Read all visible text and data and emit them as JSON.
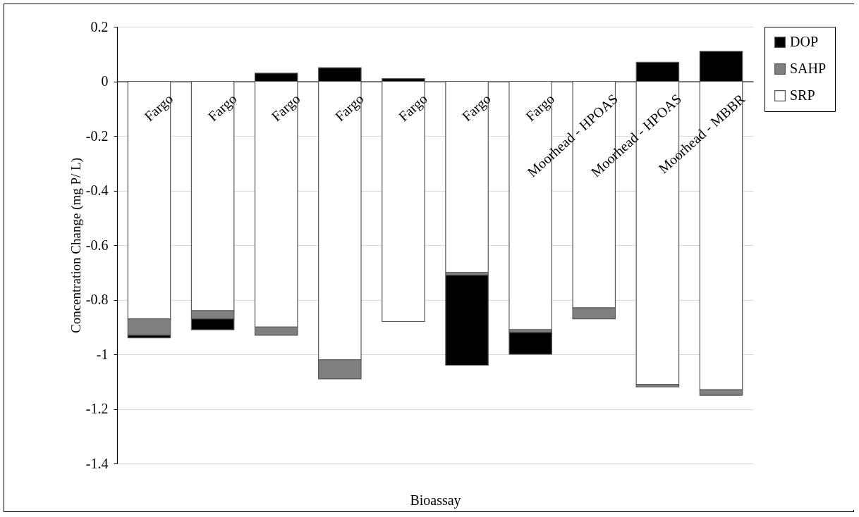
{
  "chart_data": {
    "type": "bar",
    "stacked": true,
    "xlabel": "Bioassay",
    "ylabel": "Concentration Change (mg P/ L)",
    "categories": [
      "Fargo",
      "Fargo",
      "Fargo",
      "Fargo",
      "Fargo",
      "Fargo",
      "Fargo",
      "Moorhead - HPOAS",
      "Moorhead - HPOAS",
      "Moorhead - MBBR"
    ],
    "series": [
      {
        "name": "SRP",
        "color": "#ffffff",
        "values": [
          -0.87,
          -0.84,
          -0.9,
          -1.02,
          -0.88,
          -0.7,
          -0.91,
          -0.83,
          -1.11,
          -1.13
        ]
      },
      {
        "name": "SAHP",
        "color": "#808080",
        "values": [
          -0.06,
          -0.03,
          -0.03,
          -0.07,
          null,
          -0.01,
          -0.01,
          -0.04,
          -0.01,
          -0.02
        ]
      },
      {
        "name": "DOP",
        "color": "#000000",
        "values": [
          -0.01,
          -0.04,
          0.03,
          0.05,
          0.01,
          -0.33,
          -0.08,
          null,
          0.07,
          0.11
        ]
      }
    ],
    "ylim": [
      -1.4,
      0.2
    ],
    "yticks": [
      -1.4,
      -1.2,
      -1,
      -0.8,
      -0.6,
      -0.4,
      -0.2,
      0,
      0.2
    ],
    "grid": "y",
    "legend": "right"
  }
}
